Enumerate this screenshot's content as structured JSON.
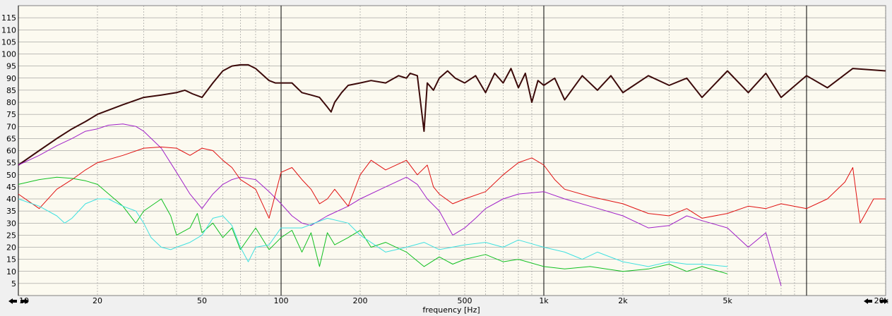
{
  "chart_data": {
    "type": "line",
    "title": "",
    "xlabel": "frequency [Hz]",
    "ylabel": "",
    "xscale": "log",
    "xlim": [
      10,
      20000
    ],
    "ylim": [
      0,
      120
    ],
    "grid": true,
    "x_tick_labels": [
      {
        "value": 10,
        "label": "10"
      },
      {
        "value": 20,
        "label": "20"
      },
      {
        "value": 50,
        "label": "50"
      },
      {
        "value": 100,
        "label": "100"
      },
      {
        "value": 200,
        "label": "200"
      },
      {
        "value": 500,
        "label": "500"
      },
      {
        "value": 1000,
        "label": "1k"
      },
      {
        "value": 2000,
        "label": "2k"
      },
      {
        "value": 5000,
        "label": "5k"
      },
      {
        "value": 20000,
        "label": "20k"
      }
    ],
    "y_ticks": [
      5,
      10,
      15,
      20,
      25,
      30,
      35,
      40,
      45,
      50,
      55,
      60,
      65,
      70,
      75,
      80,
      85,
      90,
      95,
      100,
      105,
      110,
      115
    ],
    "series": [
      {
        "color": "#3c0a0a",
        "width": 2,
        "points": [
          [
            10,
            54
          ],
          [
            12,
            60
          ],
          [
            14,
            65
          ],
          [
            16,
            69
          ],
          [
            18,
            72
          ],
          [
            20,
            75
          ],
          [
            25,
            79
          ],
          [
            30,
            82
          ],
          [
            35,
            83
          ],
          [
            40,
            84
          ],
          [
            43,
            85
          ],
          [
            46,
            83.5
          ],
          [
            50,
            82
          ],
          [
            55,
            88
          ],
          [
            60,
            93
          ],
          [
            65,
            95
          ],
          [
            70,
            95.5
          ],
          [
            75,
            95.5
          ],
          [
            80,
            94
          ],
          [
            90,
            89
          ],
          [
            95,
            88
          ],
          [
            100,
            88
          ],
          [
            110,
            88
          ],
          [
            120,
            84
          ],
          [
            130,
            83
          ],
          [
            140,
            82
          ],
          [
            150,
            78
          ],
          [
            155,
            76
          ],
          [
            160,
            80
          ],
          [
            170,
            84
          ],
          [
            180,
            87
          ],
          [
            200,
            88
          ],
          [
            220,
            89
          ],
          [
            250,
            88
          ],
          [
            280,
            91
          ],
          [
            300,
            90
          ],
          [
            310,
            92
          ],
          [
            330,
            91
          ],
          [
            350,
            68
          ],
          [
            360,
            88
          ],
          [
            380,
            85
          ],
          [
            400,
            90
          ],
          [
            430,
            93
          ],
          [
            460,
            90
          ],
          [
            500,
            88
          ],
          [
            550,
            91
          ],
          [
            600,
            84
          ],
          [
            650,
            92
          ],
          [
            700,
            88
          ],
          [
            750,
            94
          ],
          [
            800,
            86
          ],
          [
            850,
            92
          ],
          [
            900,
            80
          ],
          [
            950,
            89
          ],
          [
            1000,
            87
          ],
          [
            1100,
            90
          ],
          [
            1200,
            81
          ],
          [
            1400,
            91
          ],
          [
            1600,
            85
          ],
          [
            1800,
            91
          ],
          [
            2000,
            84
          ],
          [
            2500,
            91
          ],
          [
            3000,
            87
          ],
          [
            3500,
            90
          ],
          [
            4000,
            82
          ],
          [
            5000,
            93
          ],
          [
            6000,
            84
          ],
          [
            7000,
            92
          ],
          [
            8000,
            82
          ],
          [
            10000,
            91
          ],
          [
            12000,
            86
          ],
          [
            15000,
            94
          ],
          [
            20000,
            93
          ]
        ]
      },
      {
        "color": "#a020c8",
        "width": 1,
        "points": [
          [
            10,
            54
          ],
          [
            12,
            58
          ],
          [
            14,
            62
          ],
          [
            16,
            65
          ],
          [
            18,
            68
          ],
          [
            20,
            69
          ],
          [
            22,
            70.5
          ],
          [
            25,
            71
          ],
          [
            28,
            70
          ],
          [
            30,
            68
          ],
          [
            35,
            61
          ],
          [
            40,
            51
          ],
          [
            45,
            42
          ],
          [
            50,
            36
          ],
          [
            55,
            42
          ],
          [
            60,
            46
          ],
          [
            65,
            48
          ],
          [
            70,
            49
          ],
          [
            80,
            48
          ],
          [
            90,
            43
          ],
          [
            100,
            38
          ],
          [
            110,
            33
          ],
          [
            120,
            30
          ],
          [
            130,
            29
          ],
          [
            150,
            33
          ],
          [
            180,
            37
          ],
          [
            200,
            40
          ],
          [
            250,
            45
          ],
          [
            300,
            49
          ],
          [
            330,
            46
          ],
          [
            360,
            40
          ],
          [
            400,
            35
          ],
          [
            450,
            25
          ],
          [
            500,
            28
          ],
          [
            550,
            32
          ],
          [
            600,
            36
          ],
          [
            700,
            40
          ],
          [
            800,
            42
          ],
          [
            1000,
            43
          ],
          [
            1200,
            40
          ],
          [
            1500,
            37
          ],
          [
            2000,
            33
          ],
          [
            2500,
            28
          ],
          [
            3000,
            29
          ],
          [
            3500,
            33
          ],
          [
            4000,
            31
          ],
          [
            5000,
            28
          ],
          [
            6000,
            20
          ],
          [
            7000,
            26
          ],
          [
            8000,
            4
          ]
        ]
      },
      {
        "color": "#e01010",
        "width": 1,
        "points": [
          [
            10,
            42
          ],
          [
            12,
            36
          ],
          [
            14,
            44
          ],
          [
            16,
            48
          ],
          [
            18,
            52
          ],
          [
            20,
            55
          ],
          [
            25,
            58
          ],
          [
            30,
            61
          ],
          [
            35,
            61.5
          ],
          [
            40,
            61
          ],
          [
            45,
            58
          ],
          [
            50,
            61
          ],
          [
            55,
            60
          ],
          [
            60,
            56
          ],
          [
            65,
            53
          ],
          [
            70,
            48
          ],
          [
            80,
            44
          ],
          [
            90,
            32
          ],
          [
            100,
            51
          ],
          [
            110,
            53
          ],
          [
            120,
            48
          ],
          [
            130,
            44
          ],
          [
            140,
            38
          ],
          [
            150,
            40
          ],
          [
            160,
            44
          ],
          [
            180,
            37
          ],
          [
            200,
            50
          ],
          [
            220,
            56
          ],
          [
            250,
            52
          ],
          [
            300,
            56
          ],
          [
            330,
            50
          ],
          [
            360,
            54
          ],
          [
            380,
            45
          ],
          [
            400,
            42
          ],
          [
            450,
            38
          ],
          [
            500,
            40
          ],
          [
            600,
            43
          ],
          [
            700,
            50
          ],
          [
            800,
            55
          ],
          [
            900,
            57
          ],
          [
            1000,
            54
          ],
          [
            1100,
            48
          ],
          [
            1200,
            44
          ],
          [
            1500,
            41
          ],
          [
            2000,
            38
          ],
          [
            2500,
            34
          ],
          [
            3000,
            33
          ],
          [
            3500,
            36
          ],
          [
            4000,
            32
          ],
          [
            5000,
            34
          ],
          [
            6000,
            37
          ],
          [
            7000,
            36
          ],
          [
            8000,
            38
          ],
          [
            10000,
            36
          ],
          [
            12000,
            40
          ],
          [
            14000,
            47
          ],
          [
            15000,
            53
          ],
          [
            16000,
            30
          ],
          [
            18000,
            40
          ],
          [
            20000,
            40
          ]
        ]
      },
      {
        "color": "#10c020",
        "width": 1,
        "points": [
          [
            10,
            46
          ],
          [
            12,
            48
          ],
          [
            14,
            49
          ],
          [
            16,
            48.5
          ],
          [
            18,
            47.5
          ],
          [
            20,
            46
          ],
          [
            25,
            37
          ],
          [
            28,
            30
          ],
          [
            30,
            35
          ],
          [
            35,
            40
          ],
          [
            38,
            33
          ],
          [
            40,
            25
          ],
          [
            45,
            28
          ],
          [
            48,
            34
          ],
          [
            50,
            26
          ],
          [
            55,
            30
          ],
          [
            60,
            24
          ],
          [
            65,
            28
          ],
          [
            70,
            19
          ],
          [
            80,
            28
          ],
          [
            90,
            19
          ],
          [
            100,
            24
          ],
          [
            110,
            27
          ],
          [
            120,
            18
          ],
          [
            130,
            26
          ],
          [
            140,
            12
          ],
          [
            150,
            26
          ],
          [
            160,
            21
          ],
          [
            180,
            24
          ],
          [
            200,
            27
          ],
          [
            220,
            20
          ],
          [
            250,
            22
          ],
          [
            300,
            18
          ],
          [
            350,
            12
          ],
          [
            400,
            16
          ],
          [
            450,
            13
          ],
          [
            500,
            15
          ],
          [
            600,
            17
          ],
          [
            700,
            14
          ],
          [
            800,
            15
          ],
          [
            1000,
            12
          ],
          [
            1200,
            11
          ],
          [
            1500,
            12
          ],
          [
            2000,
            10
          ],
          [
            2500,
            11
          ],
          [
            3000,
            13
          ],
          [
            3500,
            10
          ],
          [
            4000,
            12
          ],
          [
            5000,
            9
          ]
        ]
      },
      {
        "color": "#40e0e0",
        "width": 1,
        "points": [
          [
            10,
            40
          ],
          [
            12,
            37
          ],
          [
            14,
            33
          ],
          [
            15,
            30
          ],
          [
            16,
            32
          ],
          [
            18,
            38
          ],
          [
            20,
            40
          ],
          [
            22,
            40
          ],
          [
            25,
            37
          ],
          [
            28,
            35
          ],
          [
            30,
            30
          ],
          [
            32,
            24
          ],
          [
            35,
            20
          ],
          [
            38,
            19
          ],
          [
            40,
            20
          ],
          [
            45,
            22
          ],
          [
            50,
            25
          ],
          [
            55,
            32
          ],
          [
            60,
            33
          ],
          [
            65,
            29
          ],
          [
            70,
            20
          ],
          [
            75,
            14
          ],
          [
            80,
            20
          ],
          [
            90,
            21
          ],
          [
            100,
            28
          ],
          [
            120,
            28
          ],
          [
            150,
            32
          ],
          [
            180,
            30
          ],
          [
            200,
            25
          ],
          [
            250,
            18
          ],
          [
            300,
            20
          ],
          [
            350,
            22
          ],
          [
            400,
            19
          ],
          [
            500,
            21
          ],
          [
            600,
            22
          ],
          [
            700,
            20
          ],
          [
            800,
            23
          ],
          [
            1000,
            20
          ],
          [
            1200,
            18
          ],
          [
            1400,
            15
          ],
          [
            1600,
            18
          ],
          [
            2000,
            14
          ],
          [
            2500,
            12
          ],
          [
            3000,
            14
          ],
          [
            3500,
            13
          ],
          [
            4000,
            13
          ],
          [
            5000,
            12
          ]
        ]
      }
    ]
  }
}
